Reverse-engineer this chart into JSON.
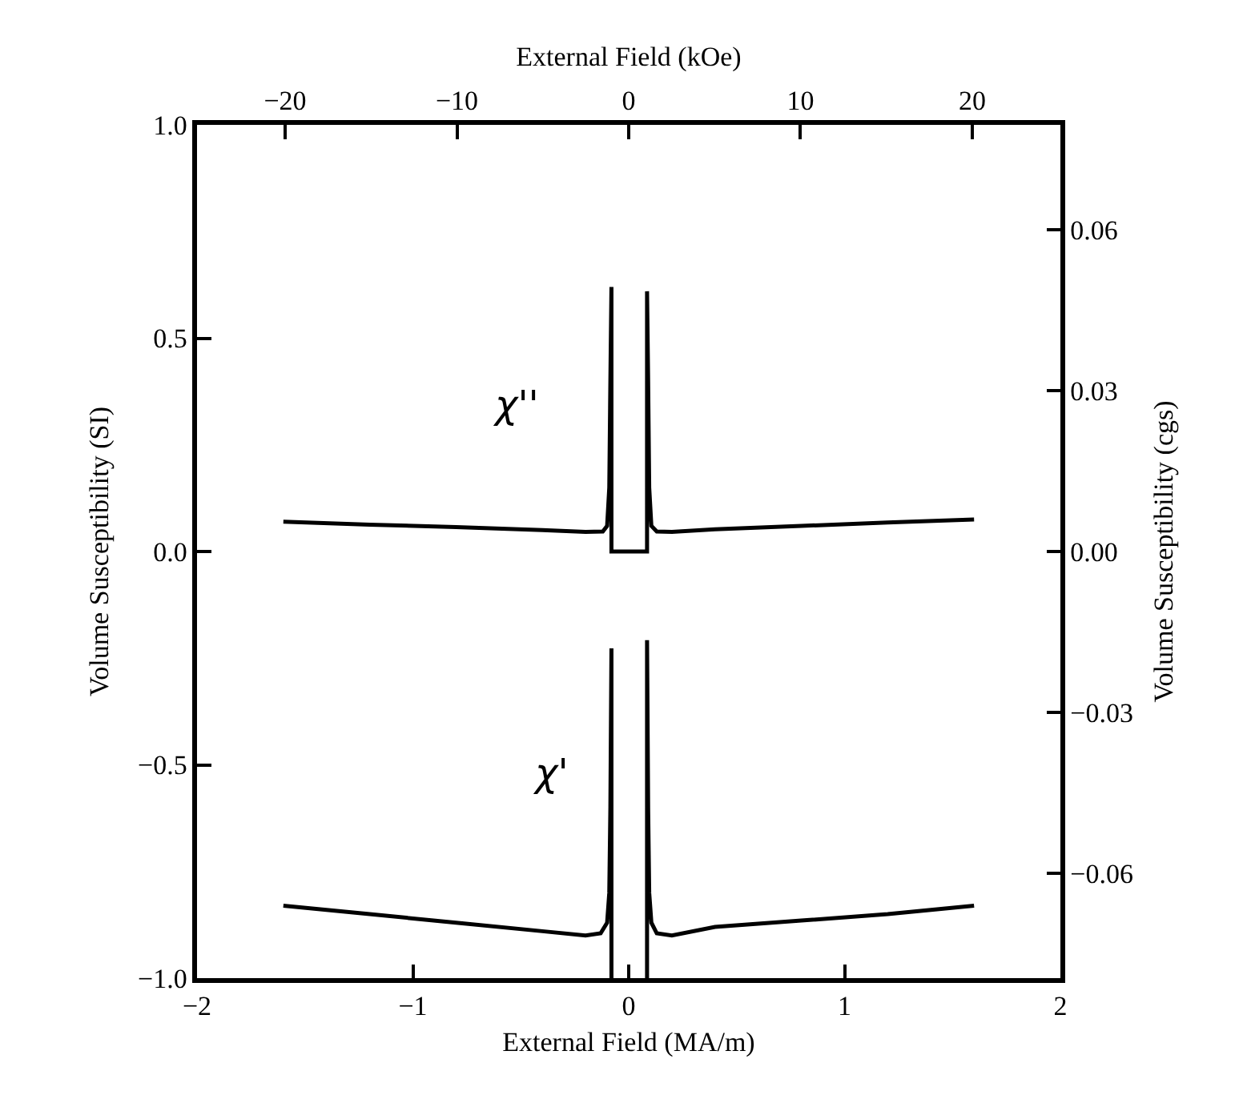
{
  "chart_data": {
    "type": "line",
    "xlabel": "External Field (MA/m)",
    "ylabel": "Volume Susceptibility (SI)",
    "y2label": "Volume Susceptibility (cgs)",
    "x2label": "External Field (kOe)",
    "xlim": [
      -2,
      2
    ],
    "xticks": [
      {
        "value": -2,
        "label": "−2"
      },
      {
        "value": -1,
        "label": "−1"
      },
      0,
      1,
      2
    ],
    "ylim": [
      -1.0,
      1.0
    ],
    "yticks": [
      {
        "value": -1.0,
        "label": "−1.0"
      },
      {
        "value": -0.5,
        "label": "−0.5"
      },
      {
        "value": 0.0,
        "label": "0.0"
      },
      {
        "value": 0.5,
        "label": "0.5"
      },
      {
        "value": 1.0,
        "label": "1.0"
      }
    ],
    "y2lim": [
      -0.0796,
      0.0796
    ],
    "y2ticks": [
      {
        "value": -0.06,
        "label": "−0.06"
      },
      {
        "value": -0.03,
        "label": "−0.03"
      },
      {
        "value": 0.0,
        "label": "0.00"
      },
      {
        "value": 0.03,
        "label": "0.03"
      },
      {
        "value": 0.06,
        "label": "0.06"
      }
    ],
    "x2lim": [
      -25.13,
      25.13
    ],
    "x2ticks": [
      {
        "value": -20,
        "label": "−20"
      },
      {
        "value": -10,
        "label": "−10"
      },
      0,
      10,
      20
    ],
    "legend": false,
    "marker": "none",
    "line_style": "solid",
    "series": [
      {
        "name": "χ''",
        "color": "#000000",
        "x": [
          -1.6,
          -1.2,
          -0.8,
          -0.4,
          -0.2,
          -0.12,
          -0.1,
          -0.09,
          -0.085,
          -0.08,
          -0.08,
          0.085,
          0.085,
          0.09,
          0.095,
          0.105,
          0.13,
          0.2,
          0.4,
          0.8,
          1.2,
          1.6
        ],
        "values": [
          0.07,
          0.063,
          0.057,
          0.05,
          0.046,
          0.047,
          0.06,
          0.15,
          0.4,
          0.62,
          0.0,
          0.0,
          0.61,
          0.4,
          0.15,
          0.06,
          0.047,
          0.046,
          0.052,
          0.06,
          0.068,
          0.075
        ]
      },
      {
        "name": "χ'",
        "color": "#000000",
        "x": [
          -1.6,
          -1.2,
          -0.8,
          -0.4,
          -0.2,
          -0.13,
          -0.1,
          -0.09,
          -0.085,
          -0.08,
          -0.08,
          0,
          0.085,
          0.085,
          0.09,
          0.095,
          0.105,
          0.13,
          0.2,
          0.4,
          0.8,
          1.2,
          1.6
        ],
        "values": [
          -0.83,
          -0.85,
          -0.87,
          -0.89,
          -0.9,
          -0.895,
          -0.87,
          -0.8,
          -0.6,
          -0.227,
          -1.0,
          null,
          -1.0,
          -0.208,
          -0.6,
          -0.8,
          -0.87,
          -0.895,
          -0.9,
          -0.88,
          -0.865,
          -0.85,
          -0.83
        ]
      }
    ]
  }
}
